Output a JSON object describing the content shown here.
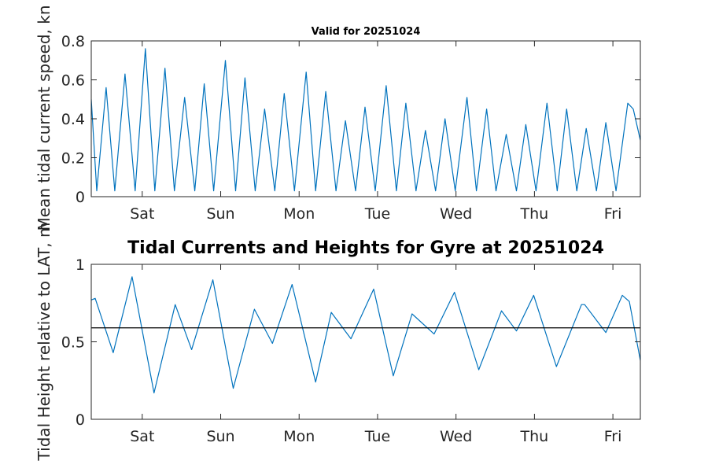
{
  "figure": {
    "background": "#ffffff",
    "line_color": "#0072bd",
    "axis_color": "#262626",
    "ref_line_color": "#000000"
  },
  "chart_data": [
    {
      "type": "line",
      "title": "Valid for 20251024",
      "ylabel": "Mean tidal current speed, kn",
      "xlabel": "",
      "xlim": [
        0,
        7
      ],
      "ylim": [
        0,
        0.8
      ],
      "yticks": [
        0,
        0.2,
        0.4,
        0.6,
        0.8
      ],
      "ytick_labels": [
        "0",
        "0.2",
        "0.4",
        "0.6",
        "0.8"
      ],
      "xticks": [
        0.65,
        1.65,
        2.65,
        3.65,
        4.65,
        5.65,
        6.65
      ],
      "xtick_labels": [
        "Sat",
        "Sun",
        "Mon",
        "Tue",
        "Wed",
        "Thu",
        "Fri"
      ],
      "grid": false,
      "series": [
        {
          "color": "#0072bd",
          "x": [
            0,
            0.07,
            0.19,
            0.3,
            0.43,
            0.56,
            0.69,
            0.81,
            0.94,
            1.06,
            1.19,
            1.32,
            1.44,
            1.56,
            1.71,
            1.84,
            1.96,
            2.09,
            2.21,
            2.34,
            2.46,
            2.59,
            2.74,
            2.86,
            2.99,
            3.12,
            3.24,
            3.37,
            3.49,
            3.62,
            3.76,
            3.89,
            4.01,
            4.14,
            4.26,
            4.39,
            4.51,
            4.64,
            4.79,
            4.91,
            5.04,
            5.16,
            5.29,
            5.42,
            5.54,
            5.67,
            5.81,
            5.94,
            6.06,
            6.19,
            6.31,
            6.44,
            6.56,
            6.69,
            6.84,
            6.91,
            7.0
          ],
          "y": [
            0.5,
            0.03,
            0.56,
            0.03,
            0.63,
            0.03,
            0.76,
            0.03,
            0.66,
            0.03,
            0.51,
            0.03,
            0.58,
            0.03,
            0.7,
            0.03,
            0.61,
            0.03,
            0.45,
            0.03,
            0.53,
            0.03,
            0.64,
            0.03,
            0.54,
            0.03,
            0.39,
            0.03,
            0.46,
            0.03,
            0.57,
            0.03,
            0.48,
            0.03,
            0.34,
            0.03,
            0.4,
            0.03,
            0.51,
            0.03,
            0.45,
            0.03,
            0.32,
            0.03,
            0.37,
            0.03,
            0.48,
            0.03,
            0.45,
            0.03,
            0.35,
            0.03,
            0.38,
            0.03,
            0.48,
            0.45,
            0.29
          ]
        }
      ]
    },
    {
      "type": "line",
      "title": "Tidal Currents and Heights for Gyre at 20251024",
      "ylabel": "Tidal Height relative to LAT, m",
      "xlabel": "",
      "xlim": [
        0,
        7
      ],
      "ylim": [
        0,
        1
      ],
      "yticks": [
        0,
        0.5,
        1
      ],
      "ytick_labels": [
        "0",
        "0.5",
        "1"
      ],
      "xticks": [
        0.65,
        1.65,
        2.65,
        3.65,
        4.65,
        5.65,
        6.65
      ],
      "xtick_labels": [
        "Sat",
        "Sun",
        "Mon",
        "Tue",
        "Wed",
        "Thu",
        "Fri"
      ],
      "grid": false,
      "reference_line": 0.59,
      "series": [
        {
          "color": "#0072bd",
          "x": [
            0,
            0.05,
            0.28,
            0.52,
            0.8,
            1.07,
            1.28,
            1.55,
            1.81,
            2.08,
            2.31,
            2.56,
            2.86,
            3.06,
            3.31,
            3.6,
            3.85,
            4.09,
            4.37,
            4.63,
            4.94,
            5.23,
            5.42,
            5.64,
            5.93,
            6.25,
            6.29,
            6.56,
            6.77,
            6.86,
            7.0
          ],
          "y": [
            0.77,
            0.78,
            0.43,
            0.92,
            0.17,
            0.74,
            0.45,
            0.9,
            0.2,
            0.71,
            0.49,
            0.87,
            0.24,
            0.69,
            0.52,
            0.84,
            0.28,
            0.68,
            0.55,
            0.82,
            0.32,
            0.7,
            0.57,
            0.8,
            0.34,
            0.74,
            0.74,
            0.56,
            0.8,
            0.76,
            0.38
          ]
        }
      ]
    }
  ]
}
